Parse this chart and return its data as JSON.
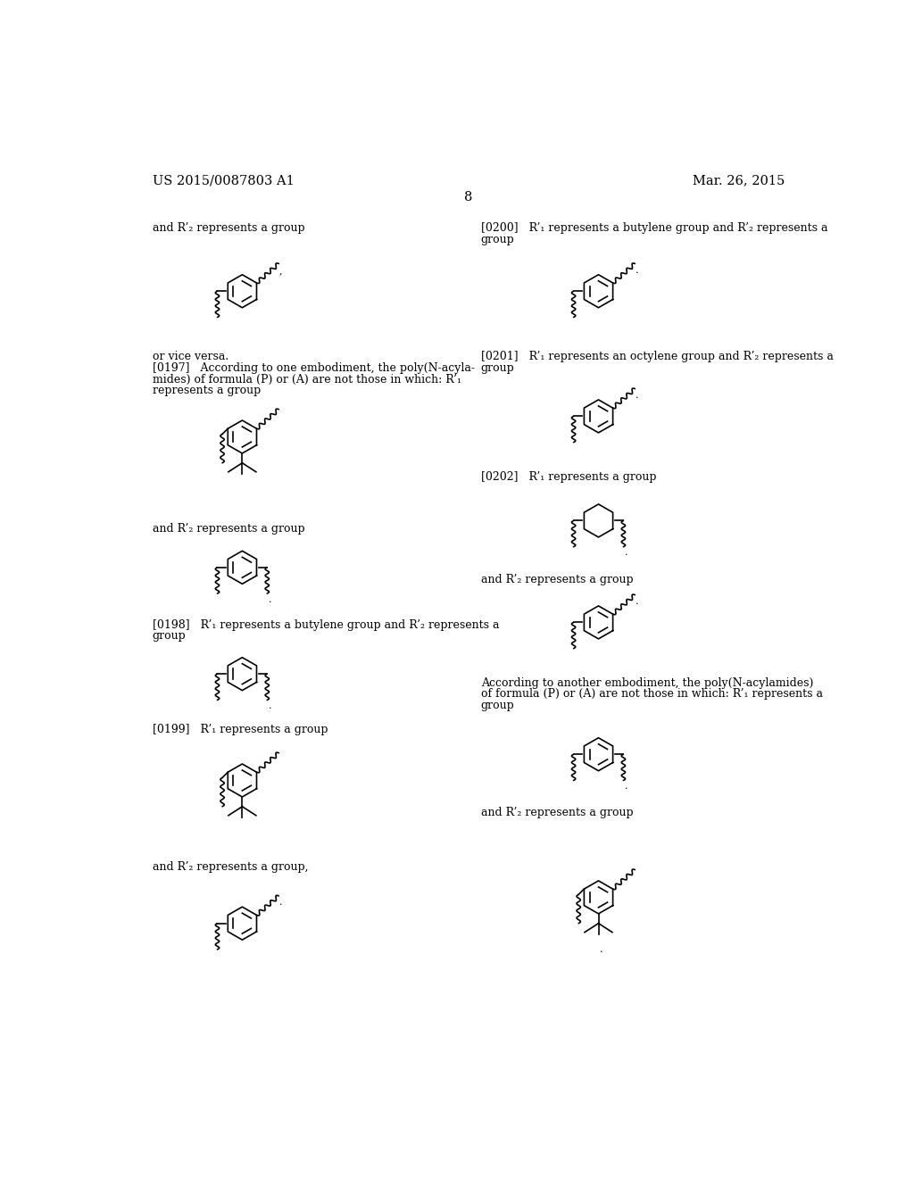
{
  "background_color": "#ffffff",
  "header_left": "US 2015/0087803 A1",
  "header_right": "Mar. 26, 2015",
  "page_number": "8",
  "font_size_header": 10.5,
  "font_size_body": 9.0
}
